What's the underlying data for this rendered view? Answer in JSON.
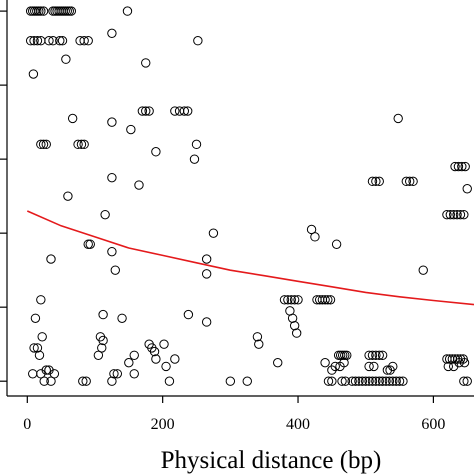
{
  "chart_data": {
    "type": "scatter",
    "title": "",
    "xlabel": "Physical distance (bp)",
    "ylabel": "",
    "xlim": [
      -30,
      660
    ],
    "ylim": [
      -0.04,
      1.03
    ],
    "x_ticks": [
      0,
      200,
      400,
      600
    ],
    "x_tick_labels": [
      "0",
      "200",
      "400",
      "600"
    ],
    "y_ticks": [
      0.0,
      0.2,
      0.4,
      0.6,
      0.8,
      1.0
    ],
    "y_tick_labels": [],
    "grid": false,
    "legend": "none",
    "point_style": "open-circle",
    "series": [
      {
        "values": [
          [
            5,
            1.0
          ],
          [
            8,
            1.0
          ],
          [
            11,
            1.0
          ],
          [
            14,
            1.0
          ],
          [
            17,
            1.0
          ],
          [
            20,
            1.0
          ],
          [
            24,
            1.0
          ],
          [
            38,
            1.0
          ],
          [
            41,
            1.0
          ],
          [
            44,
            1.0
          ],
          [
            47,
            1.0
          ],
          [
            50,
            1.0
          ],
          [
            53,
            1.0
          ],
          [
            56,
            1.0
          ],
          [
            59,
            1.0
          ],
          [
            62,
            1.0
          ],
          [
            65,
            1.0
          ],
          [
            148,
            1.0
          ],
          [
            5,
            0.92
          ],
          [
            10,
            0.92
          ],
          [
            15,
            0.92
          ],
          [
            20,
            0.92
          ],
          [
            32,
            0.92
          ],
          [
            38,
            0.92
          ],
          [
            48,
            0.92
          ],
          [
            52,
            0.92
          ],
          [
            78,
            0.92
          ],
          [
            84,
            0.92
          ],
          [
            90,
            0.92
          ],
          [
            252,
            0.92
          ],
          [
            125,
            0.94
          ],
          [
            9,
            0.83
          ],
          [
            57,
            0.87
          ],
          [
            175,
            0.86
          ],
          [
            170,
            0.73
          ],
          [
            175,
            0.73
          ],
          [
            180,
            0.73
          ],
          [
            218,
            0.73
          ],
          [
            225,
            0.73
          ],
          [
            232,
            0.73
          ],
          [
            237,
            0.73
          ],
          [
            67,
            0.71
          ],
          [
            125,
            0.7
          ],
          [
            153,
            0.68
          ],
          [
            548,
            0.71
          ],
          [
            20,
            0.64
          ],
          [
            24,
            0.64
          ],
          [
            28,
            0.64
          ],
          [
            75,
            0.64
          ],
          [
            80,
            0.64
          ],
          [
            84,
            0.64
          ],
          [
            250,
            0.64
          ],
          [
            190,
            0.62
          ],
          [
            247,
            0.6
          ],
          [
            125,
            0.55
          ],
          [
            165,
            0.53
          ],
          [
            60,
            0.5
          ],
          [
            510,
            0.54
          ],
          [
            515,
            0.54
          ],
          [
            520,
            0.54
          ],
          [
            560,
            0.54
          ],
          [
            565,
            0.54
          ],
          [
            570,
            0.54
          ],
          [
            632,
            0.58
          ],
          [
            637,
            0.58
          ],
          [
            642,
            0.58
          ],
          [
            647,
            0.58
          ],
          [
            650,
            0.52
          ],
          [
            115,
            0.45
          ],
          [
            620,
            0.45
          ],
          [
            625,
            0.45
          ],
          [
            630,
            0.45
          ],
          [
            635,
            0.45
          ],
          [
            640,
            0.45
          ],
          [
            645,
            0.45
          ],
          [
            275,
            0.4
          ],
          [
            420,
            0.41
          ],
          [
            425,
            0.39
          ],
          [
            457,
            0.37
          ],
          [
            90,
            0.37
          ],
          [
            93,
            0.37
          ],
          [
            125,
            0.35
          ],
          [
            35,
            0.33
          ],
          [
            265,
            0.33
          ],
          [
            130,
            0.3
          ],
          [
            265,
            0.29
          ],
          [
            585,
            0.3
          ],
          [
            20,
            0.22
          ],
          [
            380,
            0.22
          ],
          [
            385,
            0.22
          ],
          [
            390,
            0.22
          ],
          [
            395,
            0.22
          ],
          [
            400,
            0.22
          ],
          [
            428,
            0.22
          ],
          [
            432,
            0.22
          ],
          [
            436,
            0.22
          ],
          [
            440,
            0.22
          ],
          [
            444,
            0.22
          ],
          [
            448,
            0.22
          ],
          [
            388,
            0.19
          ],
          [
            112,
            0.18
          ],
          [
            392,
            0.17
          ],
          [
            12,
            0.17
          ],
          [
            140,
            0.17
          ],
          [
            265,
            0.16
          ],
          [
            395,
            0.15
          ],
          [
            238,
            0.18
          ],
          [
            398,
            0.13
          ],
          [
            22,
            0.12
          ],
          [
            108,
            0.12
          ],
          [
            112,
            0.11
          ],
          [
            340,
            0.12
          ],
          [
            342,
            0.1
          ],
          [
            110,
            0.09
          ],
          [
            10,
            0.09
          ],
          [
            15,
            0.09
          ],
          [
            18,
            0.07
          ],
          [
            105,
            0.07
          ],
          [
            180,
            0.1
          ],
          [
            184,
            0.09
          ],
          [
            202,
            0.1
          ],
          [
            188,
            0.08
          ],
          [
            190,
            0.06
          ],
          [
            158,
            0.07
          ],
          [
            205,
            0.04
          ],
          [
            218,
            0.06
          ],
          [
            370,
            0.05
          ],
          [
            150,
            0.05
          ],
          [
            460,
            0.07
          ],
          [
            463,
            0.07
          ],
          [
            466,
            0.07
          ],
          [
            469,
            0.07
          ],
          [
            472,
            0.07
          ],
          [
            505,
            0.07
          ],
          [
            510,
            0.07
          ],
          [
            515,
            0.07
          ],
          [
            520,
            0.07
          ],
          [
            525,
            0.07
          ],
          [
            620,
            0.06
          ],
          [
            624,
            0.06
          ],
          [
            628,
            0.06
          ],
          [
            632,
            0.06
          ],
          [
            636,
            0.06
          ],
          [
            640,
            0.06
          ],
          [
            644,
            0.06
          ],
          [
            440,
            0.05
          ],
          [
            450,
            0.03
          ],
          [
            455,
            0.04
          ],
          [
            462,
            0.04
          ],
          [
            468,
            0.05
          ],
          [
            505,
            0.04
          ],
          [
            512,
            0.04
          ],
          [
            532,
            0.03
          ],
          [
            536,
            0.03
          ],
          [
            540,
            0.04
          ],
          [
            622,
            0.04
          ],
          [
            630,
            0.04
          ],
          [
            638,
            0.05
          ],
          [
            646,
            0.05
          ],
          [
            8,
            0.02
          ],
          [
            20,
            0.02
          ],
          [
            28,
            0.03
          ],
          [
            32,
            0.03
          ],
          [
            40,
            0.02
          ],
          [
            128,
            0.02
          ],
          [
            133,
            0.02
          ],
          [
            158,
            0.02
          ],
          [
            25,
            0.0
          ],
          [
            35,
            0.0
          ],
          [
            82,
            0.0
          ],
          [
            87,
            0.0
          ],
          [
            125,
            0.0
          ],
          [
            210,
            0.0
          ],
          [
            300,
            0.0
          ],
          [
            325,
            0.0
          ],
          [
            445,
            0.0
          ],
          [
            450,
            0.0
          ],
          [
            465,
            0.0
          ],
          [
            470,
            0.0
          ],
          [
            480,
            0.0
          ],
          [
            485,
            0.0
          ],
          [
            490,
            0.0
          ],
          [
            495,
            0.0
          ],
          [
            500,
            0.0
          ],
          [
            505,
            0.0
          ],
          [
            510,
            0.0
          ],
          [
            515,
            0.0
          ],
          [
            520,
            0.0
          ],
          [
            525,
            0.0
          ],
          [
            530,
            0.0
          ],
          [
            535,
            0.0
          ],
          [
            540,
            0.0
          ],
          [
            545,
            0.0
          ],
          [
            550,
            0.0
          ],
          [
            555,
            0.0
          ],
          [
            645,
            0.0
          ],
          [
            650,
            0.0
          ]
        ]
      },
      {
        "type": "line",
        "color": "#e41a1c",
        "values": [
          [
            0,
            0.46
          ],
          [
            50,
            0.42
          ],
          [
            100,
            0.39
          ],
          [
            150,
            0.36
          ],
          [
            200,
            0.34
          ],
          [
            250,
            0.32
          ],
          [
            300,
            0.3
          ],
          [
            350,
            0.285
          ],
          [
            400,
            0.27
          ],
          [
            450,
            0.255
          ],
          [
            500,
            0.24
          ],
          [
            550,
            0.228
          ],
          [
            600,
            0.218
          ],
          [
            660,
            0.207
          ]
        ]
      }
    ]
  }
}
